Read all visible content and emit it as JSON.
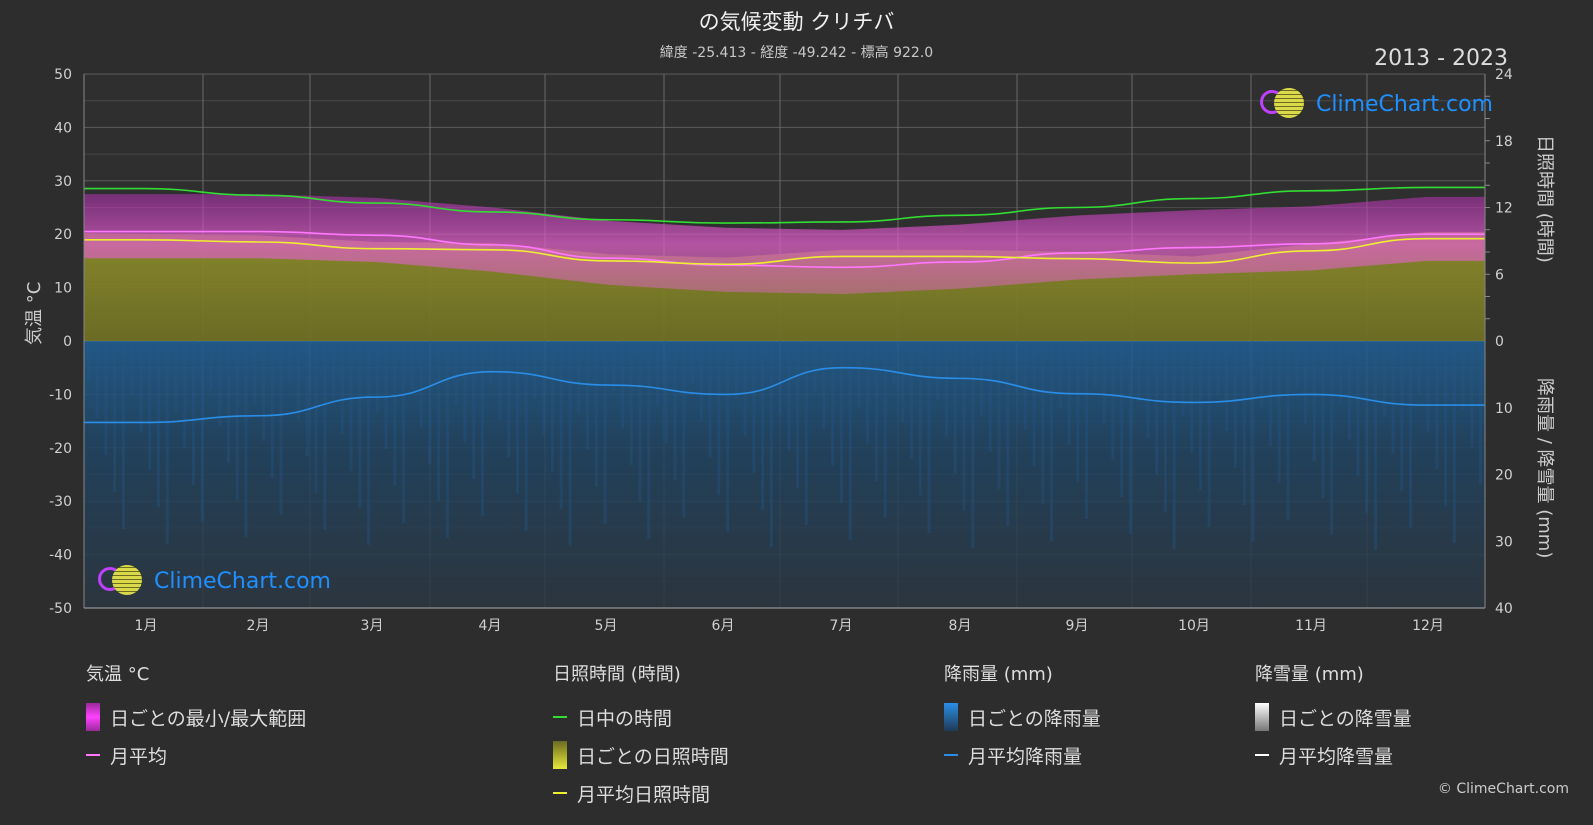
{
  "header": {
    "title": "の気候変動 クリチバ",
    "subtitle": "緯度 -25.413 - 経度 -49.242 - 標高 922.0",
    "years": "2013 - 2023"
  },
  "axes": {
    "left_label": "気温 °C",
    "right_top_label": "日照時間 (時間)",
    "right_bottom_label": "降雨量 / 降雪量 (mm)",
    "left_ticks": [
      "50",
      "40",
      "30",
      "20",
      "10",
      "0",
      "-10",
      "-20",
      "-30",
      "-40",
      "-50"
    ],
    "right_top_ticks": [
      "24",
      "18",
      "12",
      "6",
      "0"
    ],
    "right_bottom_ticks": [
      "10",
      "20",
      "30",
      "40"
    ]
  },
  "chart_data": {
    "type": "area",
    "categories": [
      "1月",
      "2月",
      "3月",
      "4月",
      "5月",
      "6月",
      "7月",
      "8月",
      "9月",
      "10月",
      "11月",
      "12月"
    ],
    "ylim_temperature": [
      -50,
      50
    ],
    "ylim_sunshine_hours": [
      0,
      24
    ],
    "ylim_precipitation_mm": [
      0,
      40
    ],
    "grid": true,
    "series": [
      {
        "name": "日中の時間",
        "unit": "時間",
        "color": "#33dd33",
        "values": [
          13.7,
          13.1,
          12.4,
          11.6,
          10.9,
          10.6,
          10.7,
          11.3,
          12.0,
          12.8,
          13.5,
          13.8
        ]
      },
      {
        "name": "月平均",
        "unit": "°C",
        "color": "#ff77ff",
        "values": [
          20.5,
          20.5,
          19.8,
          18.0,
          15.5,
          14.2,
          13.8,
          14.8,
          16.5,
          17.5,
          18.2,
          20.0
        ]
      },
      {
        "name": "月平均日照時間",
        "unit": "時間",
        "color": "#eeee33",
        "values": [
          9.1,
          8.9,
          8.3,
          8.2,
          7.2,
          6.9,
          7.6,
          7.6,
          7.4,
          7.0,
          8.1,
          9.2
        ]
      },
      {
        "name": "月平均降雨量",
        "unit": "mm",
        "color": "#2a8ee8",
        "values": [
          12.2,
          11.2,
          8.4,
          4.6,
          6.6,
          8.0,
          4.0,
          5.6,
          7.9,
          9.2,
          8.0,
          9.6
        ]
      },
      {
        "name": "月平均降雪量",
        "unit": "mm",
        "color": "#ffffff",
        "values": [
          0,
          0,
          0,
          0,
          0,
          0,
          0,
          0,
          0,
          0,
          0,
          0
        ]
      }
    ],
    "daily_temperature_range_c": {
      "min": 15,
      "max": 28
    }
  },
  "legend": {
    "temperature": {
      "heading": "気温 °C",
      "range": "日ごとの最小/最大範囲",
      "avg": "月平均"
    },
    "sunshine": {
      "heading": "日照時間 (時間)",
      "daylight": "日中の時間",
      "daily": "日ごとの日照時間",
      "avg": "月平均日照時間"
    },
    "rain": {
      "heading": "降雨量 (mm)",
      "daily": "日ごとの降雨量",
      "avg": "月平均降雨量"
    },
    "snow": {
      "heading": "降雪量 (mm)",
      "daily": "日ごとの降雪量",
      "avg": "月平均降雪量"
    }
  },
  "brand": {
    "name": "ClimeChart.com",
    "copyright": "© ClimeChart.com"
  },
  "colors": {
    "background": "#2d2d2d",
    "temp_range": "#d040d0",
    "sunshine_fill": "#8a8a2a",
    "rain_fill": "#1e5a8a",
    "grid": "#555555"
  }
}
